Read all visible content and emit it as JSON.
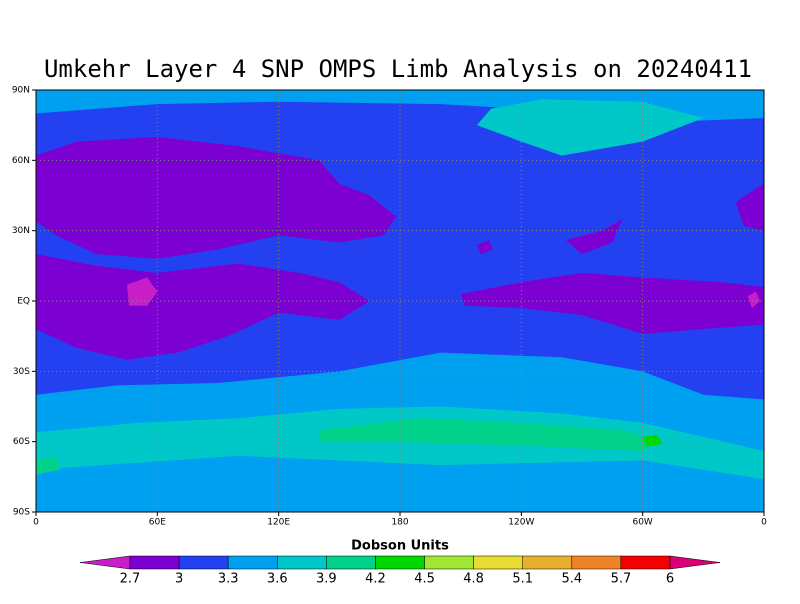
{
  "title": "Umkehr Layer 4 SNP OMPS Limb Analysis on 20240411",
  "lon_ticks": [
    {
      "value": 0,
      "label": "0"
    },
    {
      "value": 60,
      "label": "60E"
    },
    {
      "value": 120,
      "label": "120E"
    },
    {
      "value": 180,
      "label": "180"
    },
    {
      "value": 240,
      "label": "120W"
    },
    {
      "value": 300,
      "label": "60W"
    },
    {
      "value": 360,
      "label": "0"
    }
  ],
  "lat_ticks": [
    {
      "value": 90,
      "label": "90N"
    },
    {
      "value": 60,
      "label": "60N"
    },
    {
      "value": 30,
      "label": "30N"
    },
    {
      "value": 0,
      "label": "EQ"
    },
    {
      "value": -30,
      "label": "30S"
    },
    {
      "value": -60,
      "label": "60S"
    },
    {
      "value": -90,
      "label": "90S"
    }
  ],
  "colorbar": {
    "label": "Dobson Units",
    "levels": [
      2.7,
      3,
      3.3,
      3.6,
      3.9,
      4.2,
      4.5,
      4.8,
      5.1,
      5.4,
      5.7,
      6
    ],
    "colors": [
      "#c81ec8",
      "#7d00d2",
      "#2341f0",
      "#00a0f0",
      "#00c8c8",
      "#00d28c",
      "#00d800",
      "#a0e632",
      "#e6dc32",
      "#e6af2d",
      "#f08228",
      "#f50000",
      "#dc0078"
    ]
  }
}
